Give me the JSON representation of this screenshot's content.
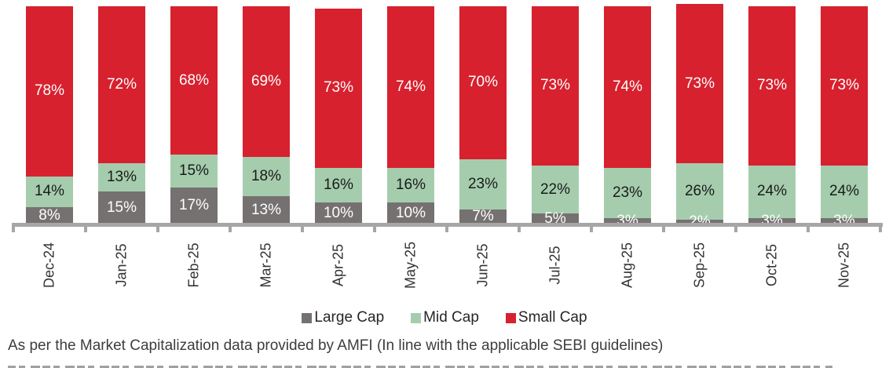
{
  "chart_data": {
    "type": "bar",
    "stacked": true,
    "stack_unit": "percent",
    "value_suffix": "%",
    "ylim": [
      0,
      100
    ],
    "grid": false,
    "legend_position": "bottom",
    "axis_color": "#A6A6A6",
    "categories": [
      "Dec-24",
      "Jan-25",
      "Feb-25",
      "Mar-25",
      "Apr-25",
      "May-25",
      "Jun-25",
      "Jul-25",
      "Aug-25",
      "Sep-25",
      "Oct-25",
      "Nov-25"
    ],
    "series": [
      {
        "name": "Large Cap",
        "color": "#767171",
        "label_color": "#FFFFFF",
        "values": [
          8,
          15,
          17,
          13,
          10,
          10,
          7,
          5,
          3,
          2,
          3,
          3
        ]
      },
      {
        "name": "Mid Cap",
        "color": "#A5CDAD",
        "label_color": "#1A1A1A",
        "values": [
          14,
          13,
          15,
          18,
          16,
          16,
          23,
          22,
          23,
          26,
          24,
          24
        ]
      },
      {
        "name": "Small Cap",
        "color": "#D7212E",
        "label_color": "#FFFFFF",
        "values": [
          78,
          72,
          68,
          69,
          73,
          74,
          70,
          73,
          74,
          73,
          73,
          73
        ]
      }
    ]
  },
  "footer": {
    "text": "As per the Market Capitalization data provided by AMFI (In line with the applicable SEBI guidelines)"
  }
}
